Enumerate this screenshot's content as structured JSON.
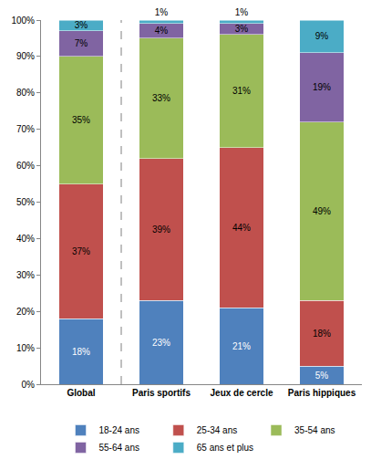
{
  "chart_data": {
    "type": "bar",
    "stacked": true,
    "data_labels": true,
    "grid": false,
    "legend": "bottom",
    "categories": [
      "Global",
      "Paris sportifs",
      "Jeux de cercle",
      "Paris hippiques"
    ],
    "series": [
      {
        "name": "18-24 ans",
        "color": "#4f81bd",
        "values": [
          18,
          23,
          21,
          5
        ],
        "value_labels": [
          "18%",
          "23%",
          "21%",
          "5%"
        ]
      },
      {
        "name": "25-34 ans",
        "color": "#c0504d",
        "values": [
          37,
          39,
          44,
          18
        ],
        "value_labels": [
          "37%",
          "39%",
          "44%",
          "18%"
        ]
      },
      {
        "name": "35-54 ans",
        "color": "#9bbb59",
        "values": [
          35,
          33,
          31,
          49
        ],
        "value_labels": [
          "35%",
          "33%",
          "31%",
          "49%"
        ]
      },
      {
        "name": "55-64 ans",
        "color": "#8064a2",
        "values": [
          7,
          4,
          3,
          19
        ],
        "value_labels": [
          "7%",
          "4%",
          "3%",
          "19%"
        ]
      },
      {
        "name": "65 ans et plus",
        "color": "#4bacc6",
        "values": [
          3,
          1,
          1,
          9
        ],
        "value_labels": [
          "3%",
          "1%",
          "1%",
          "9%"
        ]
      }
    ],
    "ylim": [
      0,
      100
    ],
    "yticks": [
      {
        "value": 0,
        "label": "0%"
      },
      {
        "value": 10,
        "label": "10%"
      },
      {
        "value": 20,
        "label": "20%"
      },
      {
        "value": 30,
        "label": "30%"
      },
      {
        "value": 40,
        "label": "40%"
      },
      {
        "value": 50,
        "label": "50%"
      },
      {
        "value": 60,
        "label": "60%"
      },
      {
        "value": 70,
        "label": "70%"
      },
      {
        "value": 80,
        "label": "80%"
      },
      {
        "value": 90,
        "label": "90%"
      },
      {
        "value": 100,
        "label": "100%"
      }
    ]
  }
}
